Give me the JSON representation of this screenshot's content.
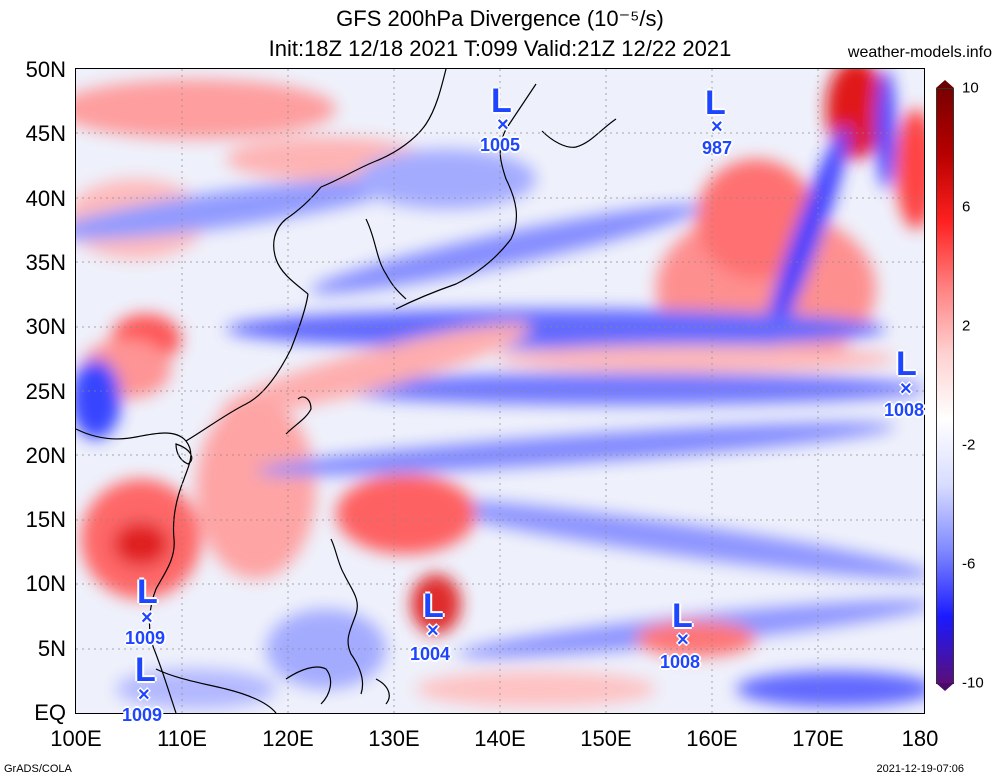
{
  "header": {
    "title_line1": "GFS 200hPa Divergence (10⁻⁵/s)",
    "title_line2": "Init:18Z 12/18 2021 T:099 Valid:21Z 12/22 2021",
    "site": "weather-models.info"
  },
  "axes": {
    "y_labels": [
      "50N",
      "45N",
      "40N",
      "35N",
      "30N",
      "25N",
      "20N",
      "15N",
      "10N",
      "5N",
      "EQ"
    ],
    "x_labels": [
      "100E",
      "110E",
      "120E",
      "130E",
      "140E",
      "150E",
      "160E",
      "170E",
      "180"
    ]
  },
  "colorbar": {
    "labels": [
      "10",
      "6",
      "2",
      "-2",
      "-6",
      "-10"
    ],
    "colors": [
      "#5a0e7a",
      "#1a1aff",
      "#7f88ff",
      "#d8dcff",
      "#ffffff",
      "#ffd0d0",
      "#ff8080",
      "#ff2020",
      "#b80000",
      "#7a0000"
    ]
  },
  "lows": [
    {
      "label": "L",
      "mark": "×",
      "pressure": "1005"
    },
    {
      "label": "L",
      "mark": "×",
      "pressure": "987"
    },
    {
      "label": "L",
      "mark": "×",
      "pressure": "1008"
    },
    {
      "label": "L",
      "mark": "×",
      "pressure": "1009"
    },
    {
      "label": "L",
      "mark": "×",
      "pressure": "1004"
    },
    {
      "label": "L",
      "mark": "×",
      "pressure": "1008"
    },
    {
      "label": "L",
      "mark": "×",
      "pressure": "1009"
    }
  ],
  "footer": {
    "left": "GrADS/COLA",
    "right": "2021-12-19-07:06"
  }
}
